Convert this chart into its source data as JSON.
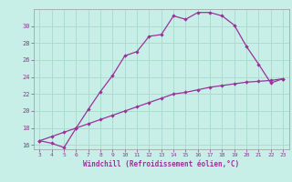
{
  "xlabel": "Windchill (Refroidissement éolien,°C)",
  "background_color": "#c8eee8",
  "grid_color": "#aaddcc",
  "line_color": "#993399",
  "x_hours": [
    3,
    4,
    5,
    6,
    7,
    8,
    9,
    10,
    11,
    12,
    13,
    14,
    15,
    16,
    17,
    18,
    19,
    20,
    21,
    22,
    23
  ],
  "windchill": [
    16.5,
    16.2,
    15.7,
    18.0,
    20.2,
    22.3,
    24.2,
    26.5,
    27.0,
    28.8,
    29.0,
    31.2,
    30.8,
    31.6,
    31.6,
    31.2,
    30.1,
    27.6,
    25.5,
    23.3,
    23.8
  ],
  "temperature": [
    16.5,
    17.0,
    17.5,
    18.0,
    18.5,
    19.0,
    19.5,
    20.0,
    20.5,
    21.0,
    21.5,
    22.0,
    22.2,
    22.5,
    22.8,
    23.0,
    23.2,
    23.4,
    23.5,
    23.6,
    23.8
  ],
  "ylim": [
    15.5,
    32.0
  ],
  "xlim": [
    2.5,
    23.5
  ],
  "yticks": [
    16,
    18,
    20,
    22,
    24,
    26,
    28,
    30
  ],
  "xticks": [
    3,
    4,
    5,
    6,
    7,
    8,
    9,
    10,
    11,
    12,
    13,
    14,
    15,
    16,
    17,
    18,
    19,
    20,
    21,
    22,
    23
  ]
}
